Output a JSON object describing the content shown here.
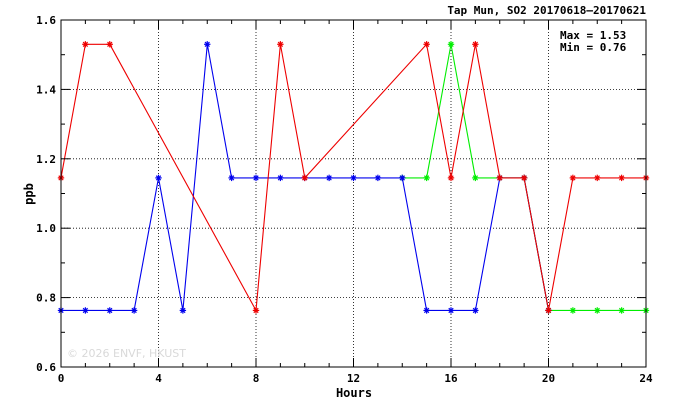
{
  "chart_data": {
    "type": "line",
    "title": "Tap Mun, SO2 20170618–20170621",
    "xlabel": "Hours",
    "ylabel": "ppb",
    "xlim": [
      0,
      24
    ],
    "ylim": [
      0.6,
      1.6
    ],
    "x_ticks": [
      0,
      4,
      8,
      12,
      16,
      20,
      24
    ],
    "x_tick_labels": [
      "0",
      "4",
      "8",
      "12",
      "16",
      "20",
      "24"
    ],
    "y_ticks": [
      0.6,
      0.8,
      1.0,
      1.2,
      1.4,
      1.6
    ],
    "y_tick_labels": [
      "0.6",
      "0.8",
      "1.0",
      "1.2",
      "1.4",
      "1.6"
    ],
    "grid": "dotted, major ticks",
    "stats": {
      "max_text": "Max = 1.53",
      "min_text": "Min = 0.76"
    },
    "watermark": "© 2026  ENVF, HKUST",
    "series": [
      {
        "color": "#00ee00",
        "x": [
          14,
          15,
          16,
          17,
          18,
          19,
          20,
          21,
          22,
          23,
          24
        ],
        "y": [
          1.145,
          1.145,
          1.53,
          1.145,
          1.145,
          1.145,
          0.763,
          0.763,
          0.763,
          0.763,
          0.763
        ]
      },
      {
        "color": "#0000ee",
        "x": [
          0,
          1,
          2,
          3,
          4,
          5,
          6,
          7,
          8,
          9,
          10,
          11,
          12,
          13,
          14,
          15,
          16,
          17,
          18,
          19,
          20
        ],
        "y": [
          0.763,
          0.763,
          0.763,
          0.763,
          1.145,
          0.763,
          1.53,
          1.145,
          1.145,
          1.145,
          1.145,
          1.145,
          1.145,
          1.145,
          1.145,
          0.763,
          0.763,
          0.763,
          1.145,
          1.145,
          0.763
        ]
      },
      {
        "color": "#ee0000",
        "x": [
          0,
          1,
          2,
          8,
          9,
          10,
          15,
          16,
          17,
          18,
          19,
          20,
          21,
          22,
          23,
          24
        ],
        "y": [
          1.145,
          1.53,
          1.53,
          0.763,
          1.53,
          1.145,
          1.53,
          1.145,
          1.53,
          1.145,
          1.145,
          0.763,
          1.145,
          1.145,
          1.145,
          1.145
        ]
      }
    ]
  }
}
